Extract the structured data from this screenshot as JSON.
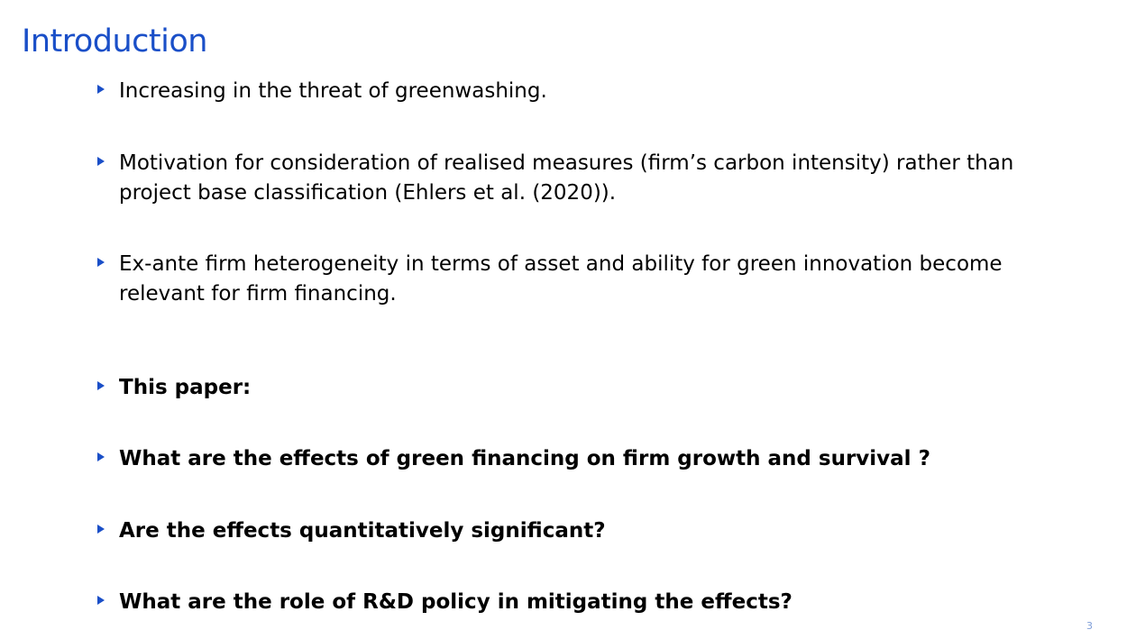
{
  "slide": {
    "title": "Introduction",
    "page_number": "3"
  },
  "bullets": [
    {
      "text": "Increasing in the threat of greenwashing.",
      "bold": false
    },
    {
      "text": "Motivation for consideration of realised measures (firm’s carbon intensity) rather than project base classification (Ehlers et al. (2020)).",
      "bold": false
    },
    {
      "text": "Ex-ante firm heterogeneity in terms of asset and ability for green innovation become relevant for firm financing.",
      "bold": false
    },
    {
      "text": "This paper:",
      "bold": true
    },
    {
      "text": "What are the effects of green financing on firm growth and survival ?",
      "bold": true
    },
    {
      "text": "Are the effects quantitatively significant?",
      "bold": true
    },
    {
      "text": "What are the role of R&D policy in mitigating the effects?",
      "bold": true
    }
  ],
  "colors": {
    "title": "#1a4fc8",
    "bullet_marker": "#1a4fc8",
    "page_number": "#7f9ed8",
    "text": "#000000",
    "background": "#ffffff"
  }
}
